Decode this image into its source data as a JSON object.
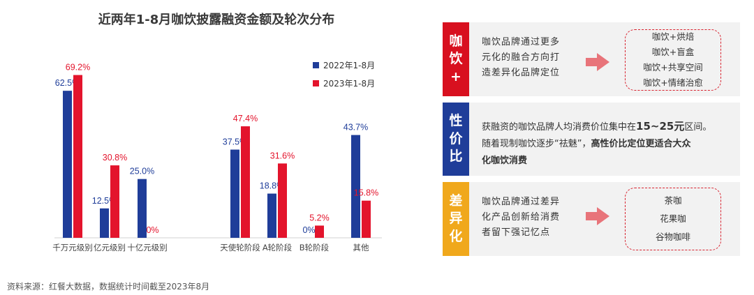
{
  "chart_data": {
    "type": "bar",
    "title": "近两年1-8月咖饮披露融资金额及轮次分布",
    "categories": [
      "千万元级别",
      "亿元级别",
      "十亿元级别",
      "天使轮阶段",
      "A轮阶段",
      "B轮阶段",
      "其他"
    ],
    "series": [
      {
        "name": "2022年1-8月",
        "color": "#1f3d99",
        "values": [
          62.5,
          12.5,
          25.0,
          37.5,
          18.8,
          0,
          43.7
        ],
        "labels": [
          "62.5%",
          "12.5%",
          "25.0%",
          "37.5%",
          "18.8%",
          "0%",
          "43.7%"
        ]
      },
      {
        "name": "2023年1-8月",
        "color": "#e3142c",
        "values": [
          69.2,
          30.8,
          0,
          47.4,
          31.6,
          5.2,
          15.8
        ],
        "labels": [
          "69.2%",
          "30.8%",
          "0%",
          "47.4%",
          "31.6%",
          "5.2%",
          "15.8%"
        ]
      }
    ],
    "ylim": [
      0,
      75
    ],
    "grid": false,
    "legend": "top-right"
  },
  "source": "资料来源：红餐大数据，数据统计时间截至2023年8月",
  "panels": [
    {
      "tag": [
        "咖",
        "饮",
        "+"
      ],
      "tag_color": "#d8101f",
      "text": [
        "咖饮品牌通过更多",
        "元化的融合方向打",
        "造差异化品牌定位"
      ],
      "bubble": [
        "咖饮+烘焙",
        "咖饮+盲盒",
        "咖饮+共享空间",
        "咖饮+情绪治愈"
      ]
    },
    {
      "tag": [
        "性",
        "价",
        "比"
      ],
      "tag_color": "#1f3d99",
      "line1_a": "获融资的咖饮品牌人均消费价位集中在",
      "line1_b": "15~25元",
      "line1_c": "区间。",
      "line2_a": "随着现制咖饮逐步“祛魅”，",
      "line2_b": "高性价比定位更适合大众",
      "line3": "化咖饮消费"
    },
    {
      "tag": [
        "差",
        "异",
        "化"
      ],
      "tag_color": "#f0a81c",
      "text": [
        "咖饮品牌通过差异",
        "化产品创新给消费",
        "者留下强记忆点"
      ],
      "bubble": [
        "茶咖",
        "花果咖",
        "谷物咖啡"
      ]
    }
  ]
}
